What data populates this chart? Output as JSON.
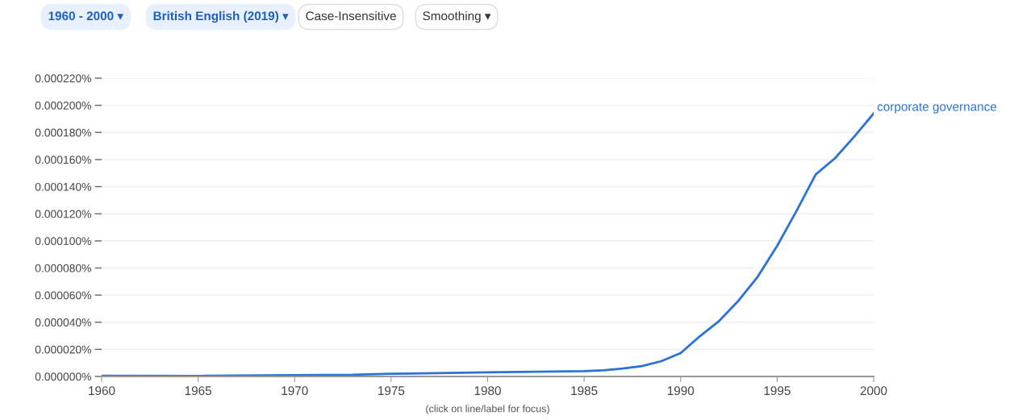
{
  "chart_data": {
    "type": "line",
    "x": [
      1960,
      1965,
      1970,
      1973,
      1975,
      1980,
      1985,
      1986,
      1987,
      1988,
      1989,
      1990,
      1991,
      1992,
      1993,
      1994,
      1995,
      1996,
      1997,
      1998,
      1999,
      2000
    ],
    "series": [
      {
        "name": "corporate governance",
        "color": "#2a72d5",
        "values": [
          5e-07,
          4e-07,
          1e-06,
          1.2e-06,
          2e-06,
          3e-06,
          3.9e-06,
          4.5e-06,
          5.9e-06,
          7.7e-06,
          1.13e-05,
          1.72e-05,
          2.97e-05,
          4.1e-05,
          5.59e-05,
          7.37e-05,
          9.63e-05,
          0.000122,
          0.000149,
          0.000161,
          0.000177,
          0.000194
        ]
      }
    ],
    "xlim": [
      1960,
      2000
    ],
    "xticks": [
      1960,
      1965,
      1970,
      1975,
      1980,
      1985,
      1990,
      1995,
      2000
    ],
    "ylim": [
      0,
      0.00022
    ],
    "yticks": [
      {
        "value": 0,
        "label": "0.000000%"
      },
      {
        "value": 2e-05,
        "label": "0.000020%"
      },
      {
        "value": 4e-05,
        "label": "0.000040%"
      },
      {
        "value": 6e-05,
        "label": "0.000060%"
      },
      {
        "value": 8e-05,
        "label": "0.000080%"
      },
      {
        "value": 0.0001,
        "label": "0.000100%"
      },
      {
        "value": 0.00012,
        "label": "0.000120%"
      },
      {
        "value": 0.00014,
        "label": "0.000140%"
      },
      {
        "value": 0.00016,
        "label": "0.000160%"
      },
      {
        "value": 0.00018,
        "label": "0.000180%"
      },
      {
        "value": 0.0002,
        "label": "0.000200%"
      },
      {
        "value": 0.00022,
        "label": "0.000220%"
      }
    ],
    "grid": "y",
    "legend": false,
    "marker": "none",
    "line_style": "solid",
    "annotations": [
      "1960 - 2000 ▾",
      "British English (2019) ▾",
      "Case-Insensitive",
      "Smoothing ▾",
      "(click on line/label for focus)"
    ]
  }
}
